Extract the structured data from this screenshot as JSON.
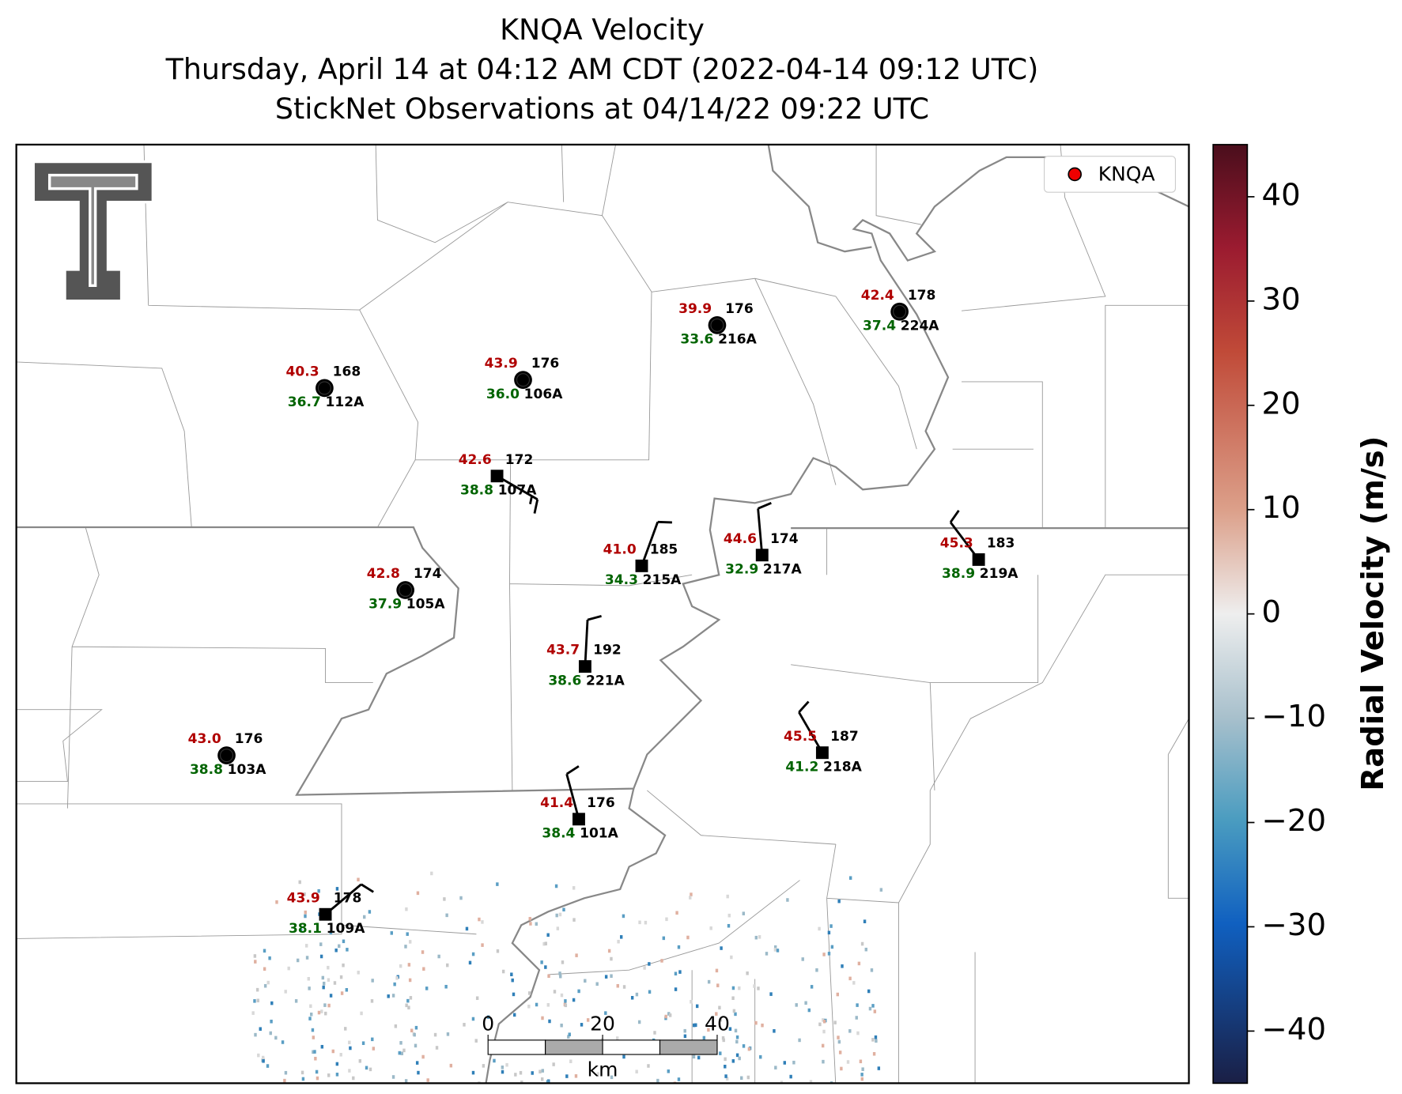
{
  "title": [
    "KNQA Velocity",
    "Thursday, April 14 at 04:12 AM CDT (2022-04-14 09:12 UTC)",
    "StickNet Observations at 04/14/22 09:22 UTC"
  ],
  "legend": "KNQA",
  "colorbar": {
    "label": "Radial Velocity (m/s)",
    "lim": [
      -45,
      45
    ],
    "ticks": [
      {
        "value": -40,
        "label": "−40"
      },
      {
        "value": -30,
        "label": "−30"
      },
      {
        "value": -20,
        "label": "−20"
      },
      {
        "value": -10,
        "label": "−10"
      },
      0,
      10,
      20,
      30,
      40
    ]
  },
  "scale_bar": {
    "lim": [
      0,
      40
    ],
    "ticks": [
      0,
      20,
      40
    ],
    "unit": "km"
  },
  "stations": [
    {
      "id": "112A",
      "kind": "circle",
      "temp": "40.3",
      "dewp": "36.7",
      "num": "168"
    },
    {
      "id": "106A",
      "kind": "circle",
      "temp": "43.9",
      "dewp": "36.0",
      "num": "176"
    },
    {
      "id": "216A",
      "kind": "circle",
      "temp": "39.9",
      "dewp": "33.6",
      "num": "176"
    },
    {
      "id": "224A",
      "kind": "circle",
      "temp": "42.4",
      "dewp": "37.4",
      "num": "178"
    },
    {
      "id": "107A",
      "kind": "square",
      "temp": "42.6",
      "dewp": "38.8",
      "num": "172",
      "wind_dir": 120,
      "wind_kt": 15
    },
    {
      "id": "215A",
      "kind": "square",
      "temp": "41.0",
      "dewp": "34.3",
      "num": "185",
      "wind_dir": 20,
      "wind_kt": 10
    },
    {
      "id": "217A",
      "kind": "square",
      "temp": "44.6",
      "dewp": "32.9",
      "num": "174",
      "wind_dir": 355,
      "wind_kt": 10
    },
    {
      "id": "219A",
      "kind": "square",
      "temp": "45.3",
      "dewp": "38.9",
      "num": "183",
      "wind_dir": 323,
      "wind_kt": 10
    },
    {
      "id": "105A",
      "kind": "circle",
      "temp": "42.8",
      "dewp": "37.9",
      "num": "174"
    },
    {
      "id": "221A",
      "kind": "square",
      "temp": "43.7",
      "dewp": "38.6",
      "num": "192",
      "wind_dir": 3,
      "wind_kt": 10
    },
    {
      "id": "103A",
      "kind": "circle",
      "temp": "43.0",
      "dewp": "38.8",
      "num": "176"
    },
    {
      "id": "218A",
      "kind": "square",
      "temp": "45.5",
      "dewp": "41.2",
      "num": "187",
      "wind_dir": 330,
      "wind_kt": 10
    },
    {
      "id": "101A",
      "kind": "square",
      "temp": "41.4",
      "dewp": "38.4",
      "num": "176",
      "wind_dir": 345,
      "wind_kt": 10
    },
    {
      "id": "109A",
      "kind": "square",
      "temp": "43.9",
      "dewp": "38.1",
      "num": "178",
      "wind_dir": 50,
      "wind_kt": 10
    }
  ]
}
